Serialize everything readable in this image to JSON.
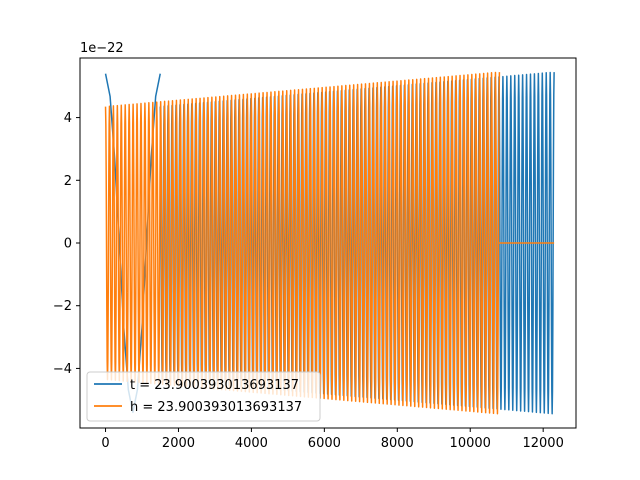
{
  "chart_data": {
    "type": "line",
    "title": "",
    "xlabel": "",
    "ylabel": "",
    "y_offset_label": "1e−22",
    "xlim": [
      -700,
      12900
    ],
    "ylim": [
      -5.9,
      5.9
    ],
    "x_ticks": [
      0,
      2000,
      4000,
      6000,
      8000,
      10000,
      12000
    ],
    "y_ticks": [
      -4,
      -2,
      0,
      2,
      4
    ],
    "y_tick_labels": [
      "−4",
      "−2",
      "0",
      "2",
      "4"
    ],
    "grid": false,
    "legend_position": "lower-left",
    "series": [
      {
        "name": "t = 23.900393013693137",
        "color": "#1f77b4",
        "segments": [
          {
            "x_start": 0,
            "x_end": 1500,
            "cycles": 1,
            "amp_start": 5.4,
            "amp_end": 5.4
          },
          {
            "x_start": 1500,
            "x_end": 12300,
            "cycles": 100,
            "amp_start": 4.35,
            "amp_end": 5.45
          }
        ]
      },
      {
        "name": "h = 23.900393013693137",
        "color": "#ff7f0e",
        "segments": [
          {
            "x_start": 0,
            "x_end": 10800,
            "cycles": 100,
            "amp_start": 4.35,
            "amp_end": 5.45
          },
          {
            "x_start": 10800,
            "x_end": 12300,
            "cycles": 0,
            "amp_start": 0,
            "amp_end": 0
          }
        ]
      }
    ]
  }
}
